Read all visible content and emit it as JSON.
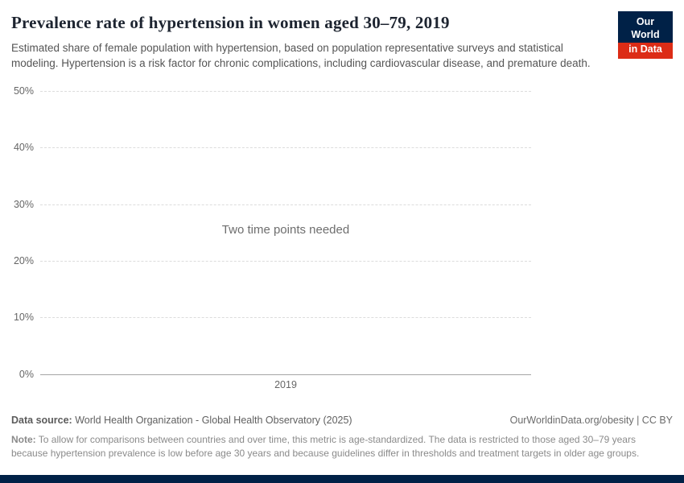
{
  "header": {
    "title": "Prevalence rate of hypertension in women aged 30–79, 2019",
    "subtitle": "Estimated share of female population with hypertension, based on population representative surveys and statistical modeling. Hypertension is a risk factor for chronic complications, including cardiovascular disease, and premature death.",
    "logo": {
      "line1": "Our World",
      "line2": "in Data",
      "bg_color": "#002147",
      "accent_color": "#dc2c16"
    }
  },
  "chart_data": {
    "type": "line",
    "title": "Prevalence rate of hypertension in women aged 30–79, 2019",
    "series": [],
    "message": "Two time points needed",
    "ylim": [
      0,
      50
    ],
    "yticks": [
      {
        "value": 50,
        "label": "50%"
      },
      {
        "value": 40,
        "label": "40%"
      },
      {
        "value": 30,
        "label": "30%"
      },
      {
        "value": 20,
        "label": "20%"
      },
      {
        "value": 10,
        "label": "10%"
      },
      {
        "value": 0,
        "label": "0%"
      }
    ],
    "xticks": [
      "2019"
    ],
    "grid": "horizontal-dashed",
    "legend": "none"
  },
  "footer": {
    "data_source_label": "Data source:",
    "data_source": "World Health Organization - Global Health Observatory (2025)",
    "rights": "OurWorldinData.org/obesity | CC BY",
    "note_label": "Note:",
    "note": "To allow for comparisons between countries and over time, this metric is age-standardized. The data is restricted to those aged 30–79 years because hypertension prevalence is low before age 30 years and because guidelines differ in thresholds and treatment targets in older age groups."
  },
  "colors": {
    "title": "#1d2430",
    "subtitle": "#555555",
    "gridline": "#dcdcdc",
    "axis": "#a5a5a5",
    "bottom_bar": "#002147"
  }
}
